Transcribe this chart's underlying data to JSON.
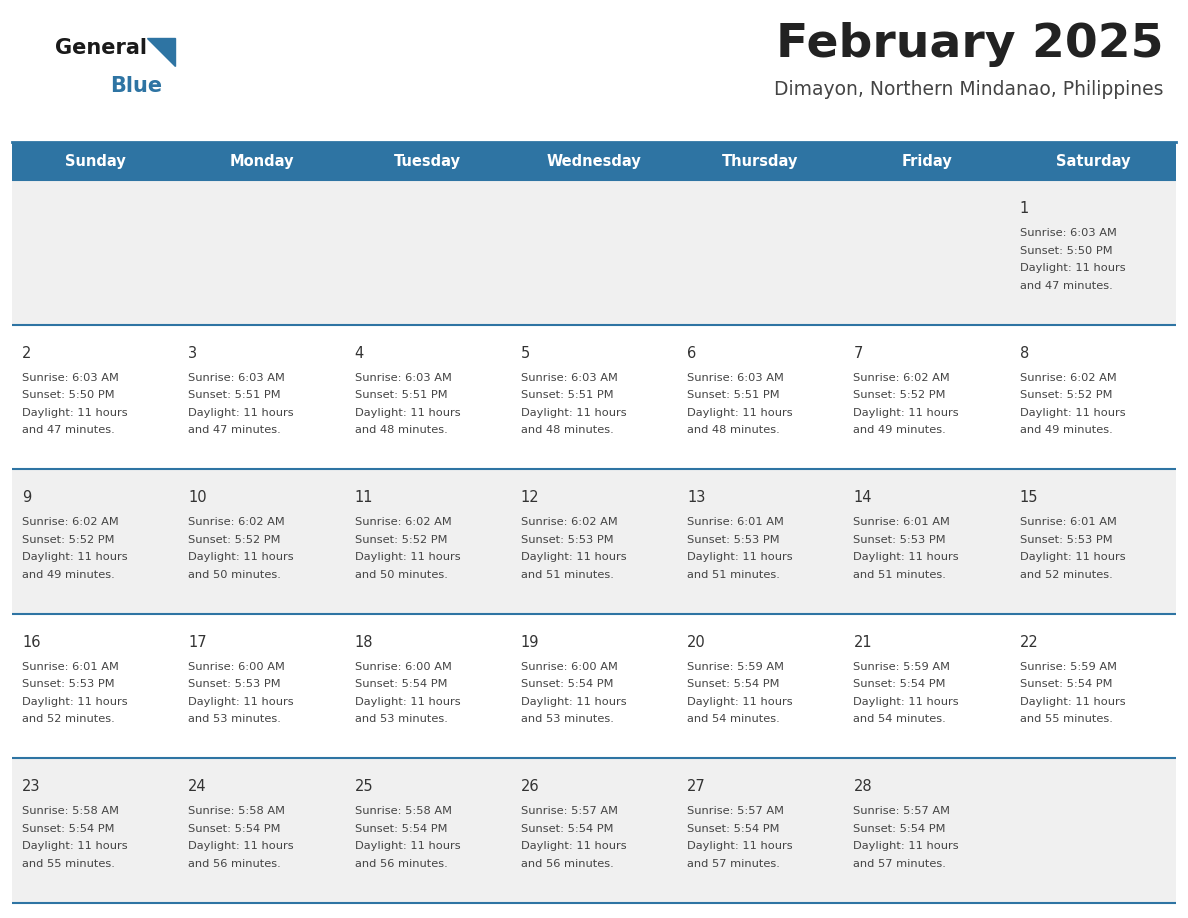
{
  "title": "February 2025",
  "subtitle": "Dimayon, Northern Mindanao, Philippines",
  "days_of_week": [
    "Sunday",
    "Monday",
    "Tuesday",
    "Wednesday",
    "Thursday",
    "Friday",
    "Saturday"
  ],
  "header_bg": "#2e74a3",
  "header_text": "#ffffff",
  "row_bg_odd": "#f0f0f0",
  "row_bg_even": "#ffffff",
  "cell_border": "#2e74a3",
  "day_number_color": "#333333",
  "cell_text_color": "#444444",
  "title_color": "#222222",
  "subtitle_color": "#444444",
  "logo_general_color": "#1a1a1a",
  "logo_blue_color": "#2e74a3",
  "logo_triangle_color": "#2e74a3",
  "calendar": [
    [
      {
        "day": null,
        "sunrise": null,
        "sunset": null,
        "daylight": null
      },
      {
        "day": null,
        "sunrise": null,
        "sunset": null,
        "daylight": null
      },
      {
        "day": null,
        "sunrise": null,
        "sunset": null,
        "daylight": null
      },
      {
        "day": null,
        "sunrise": null,
        "sunset": null,
        "daylight": null
      },
      {
        "day": null,
        "sunrise": null,
        "sunset": null,
        "daylight": null
      },
      {
        "day": null,
        "sunrise": null,
        "sunset": null,
        "daylight": null
      },
      {
        "day": 1,
        "sunrise": "6:03 AM",
        "sunset": "5:50 PM",
        "daylight": "11 hours and 47 minutes."
      }
    ],
    [
      {
        "day": 2,
        "sunrise": "6:03 AM",
        "sunset": "5:50 PM",
        "daylight": "11 hours and 47 minutes."
      },
      {
        "day": 3,
        "sunrise": "6:03 AM",
        "sunset": "5:51 PM",
        "daylight": "11 hours and 47 minutes."
      },
      {
        "day": 4,
        "sunrise": "6:03 AM",
        "sunset": "5:51 PM",
        "daylight": "11 hours and 48 minutes."
      },
      {
        "day": 5,
        "sunrise": "6:03 AM",
        "sunset": "5:51 PM",
        "daylight": "11 hours and 48 minutes."
      },
      {
        "day": 6,
        "sunrise": "6:03 AM",
        "sunset": "5:51 PM",
        "daylight": "11 hours and 48 minutes."
      },
      {
        "day": 7,
        "sunrise": "6:02 AM",
        "sunset": "5:52 PM",
        "daylight": "11 hours and 49 minutes."
      },
      {
        "day": 8,
        "sunrise": "6:02 AM",
        "sunset": "5:52 PM",
        "daylight": "11 hours and 49 minutes."
      }
    ],
    [
      {
        "day": 9,
        "sunrise": "6:02 AM",
        "sunset": "5:52 PM",
        "daylight": "11 hours and 49 minutes."
      },
      {
        "day": 10,
        "sunrise": "6:02 AM",
        "sunset": "5:52 PM",
        "daylight": "11 hours and 50 minutes."
      },
      {
        "day": 11,
        "sunrise": "6:02 AM",
        "sunset": "5:52 PM",
        "daylight": "11 hours and 50 minutes."
      },
      {
        "day": 12,
        "sunrise": "6:02 AM",
        "sunset": "5:53 PM",
        "daylight": "11 hours and 51 minutes."
      },
      {
        "day": 13,
        "sunrise": "6:01 AM",
        "sunset": "5:53 PM",
        "daylight": "11 hours and 51 minutes."
      },
      {
        "day": 14,
        "sunrise": "6:01 AM",
        "sunset": "5:53 PM",
        "daylight": "11 hours and 51 minutes."
      },
      {
        "day": 15,
        "sunrise": "6:01 AM",
        "sunset": "5:53 PM",
        "daylight": "11 hours and 52 minutes."
      }
    ],
    [
      {
        "day": 16,
        "sunrise": "6:01 AM",
        "sunset": "5:53 PM",
        "daylight": "11 hours and 52 minutes."
      },
      {
        "day": 17,
        "sunrise": "6:00 AM",
        "sunset": "5:53 PM",
        "daylight": "11 hours and 53 minutes."
      },
      {
        "day": 18,
        "sunrise": "6:00 AM",
        "sunset": "5:54 PM",
        "daylight": "11 hours and 53 minutes."
      },
      {
        "day": 19,
        "sunrise": "6:00 AM",
        "sunset": "5:54 PM",
        "daylight": "11 hours and 53 minutes."
      },
      {
        "day": 20,
        "sunrise": "5:59 AM",
        "sunset": "5:54 PM",
        "daylight": "11 hours and 54 minutes."
      },
      {
        "day": 21,
        "sunrise": "5:59 AM",
        "sunset": "5:54 PM",
        "daylight": "11 hours and 54 minutes."
      },
      {
        "day": 22,
        "sunrise": "5:59 AM",
        "sunset": "5:54 PM",
        "daylight": "11 hours and 55 minutes."
      }
    ],
    [
      {
        "day": 23,
        "sunrise": "5:58 AM",
        "sunset": "5:54 PM",
        "daylight": "11 hours and 55 minutes."
      },
      {
        "day": 24,
        "sunrise": "5:58 AM",
        "sunset": "5:54 PM",
        "daylight": "11 hours and 56 minutes."
      },
      {
        "day": 25,
        "sunrise": "5:58 AM",
        "sunset": "5:54 PM",
        "daylight": "11 hours and 56 minutes."
      },
      {
        "day": 26,
        "sunrise": "5:57 AM",
        "sunset": "5:54 PM",
        "daylight": "11 hours and 56 minutes."
      },
      {
        "day": 27,
        "sunrise": "5:57 AM",
        "sunset": "5:54 PM",
        "daylight": "11 hours and 57 minutes."
      },
      {
        "day": 28,
        "sunrise": "5:57 AM",
        "sunset": "5:54 PM",
        "daylight": "11 hours and 57 minutes."
      },
      {
        "day": null,
        "sunrise": null,
        "sunset": null,
        "daylight": null
      }
    ]
  ]
}
